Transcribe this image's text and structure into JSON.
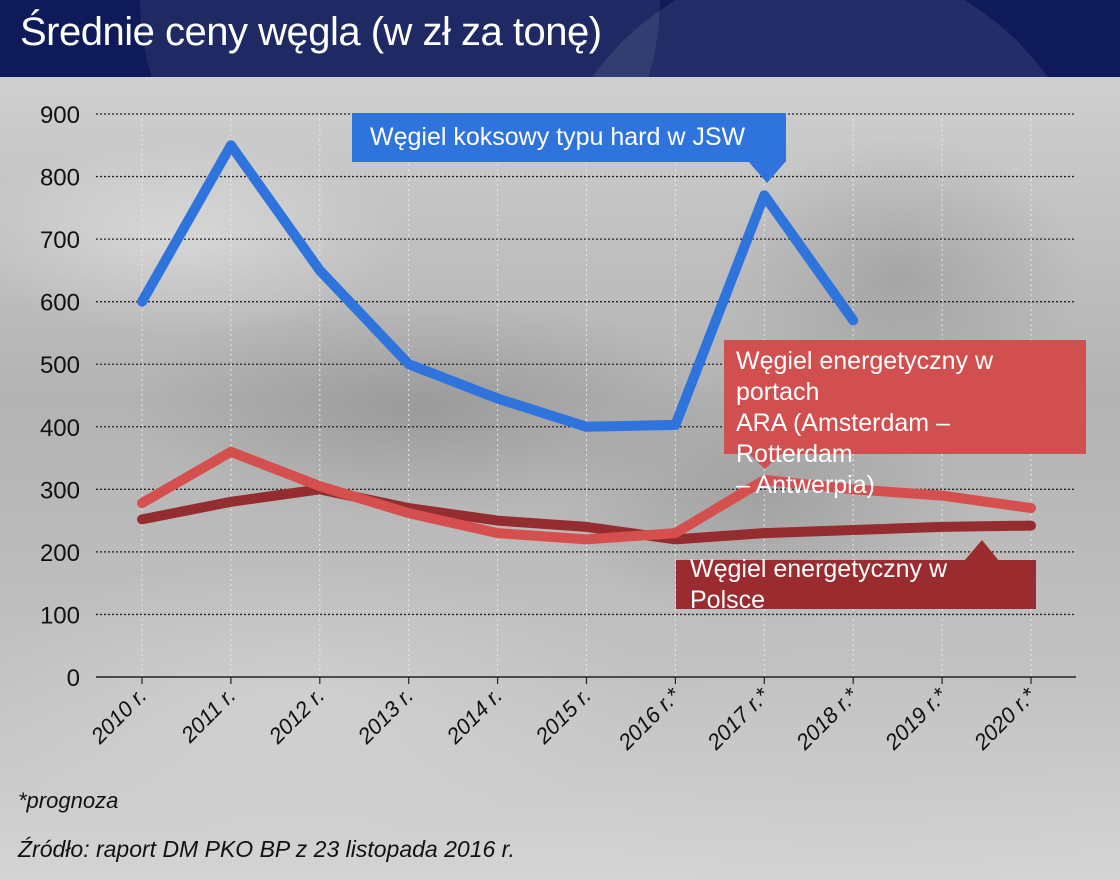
{
  "title": "Średnie ceny węgla (w zł za tonę)",
  "chart_data": {
    "type": "line",
    "title": "Średnie ceny węgla (w zł za tonę)",
    "xlabel": "",
    "ylabel": "zł za tonę",
    "ylim": [
      0,
      900
    ],
    "yticks": [
      0,
      100,
      200,
      300,
      400,
      500,
      600,
      700,
      800,
      900
    ],
    "grid": "horizontal dotted",
    "categories": [
      "2010 r.",
      "2011 r.",
      "2012 r.",
      "2013 r.",
      "2014 r.",
      "2015 r.",
      "2016 r.*",
      "2017 r.*",
      "2018 r.*",
      "2019 r.*",
      "2020 r.*"
    ],
    "series": [
      {
        "name": "Węgiel koksowy typu hard w JSW",
        "color": "#2e74dc",
        "values": [
          600,
          850,
          650,
          500,
          445,
          400,
          403,
          770,
          570,
          null,
          null
        ]
      },
      {
        "name": "Węgiel energetyczny w portach ARA (Amsterdam – Rotterdam – Antwerpia)",
        "color": "#d64f4f",
        "values": [
          278,
          360,
          305,
          262,
          230,
          220,
          230,
          315,
          300,
          290,
          270
        ]
      },
      {
        "name": "Węgiel energetyczny w Polsce",
        "color": "#952c30",
        "values": [
          252,
          280,
          300,
          270,
          250,
          240,
          220,
          230,
          235,
          240,
          242
        ]
      }
    ],
    "legend_position": "inline callouts"
  },
  "callouts": {
    "jsw": "Węgiel koksowy typu hard w JSW",
    "ara_line1": "Węgiel energetyczny w portach",
    "ara_line2": "ARA (Amsterdam – Rotterdam",
    "ara_line3": "– Antwerpia)",
    "poland": "Węgiel energetyczny w Polsce"
  },
  "footnote": "*prognoza",
  "source": "Źródło: raport DM PKO BP z 23 listopada 2016 r.",
  "colors": {
    "header": "#0e1a5a",
    "blue": "#2e74dc",
    "red": "#d14f4f",
    "dark_red": "#952c30"
  }
}
